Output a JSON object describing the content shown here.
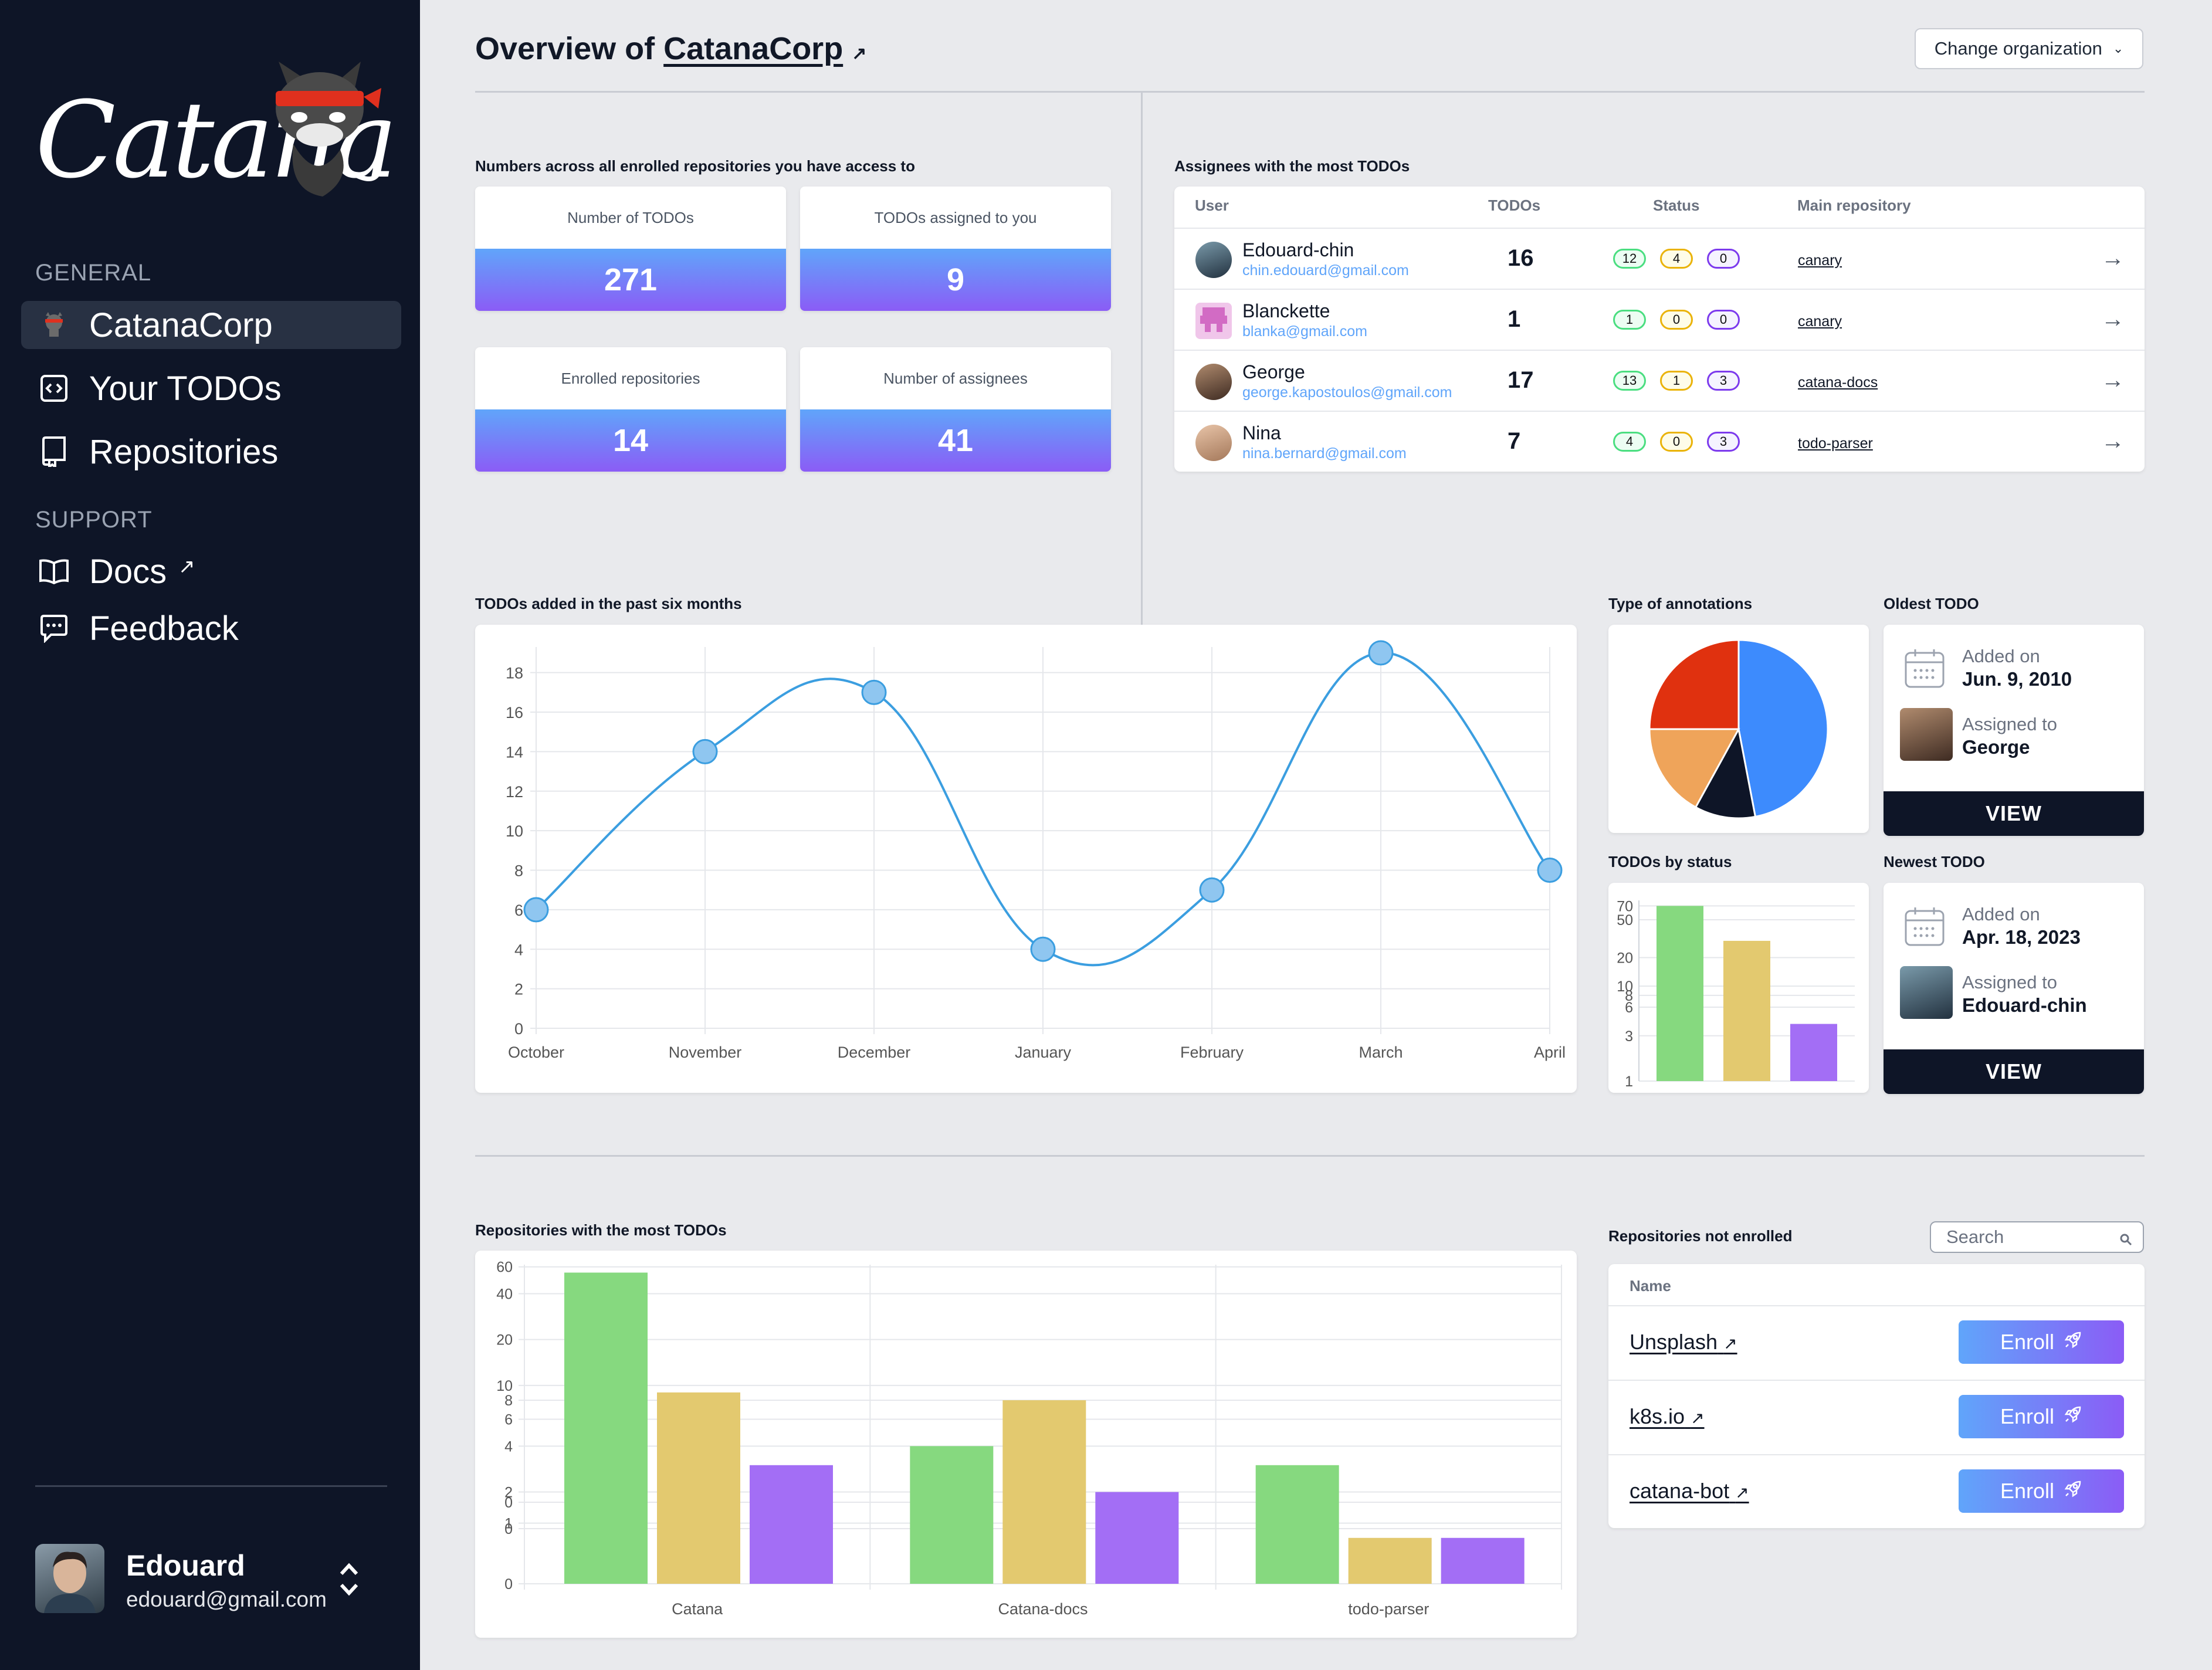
{
  "sidebar": {
    "logo_text": "Catana",
    "general_label": "GENERAL",
    "support_label": "SUPPORT",
    "items": [
      {
        "label": "CatanaCorp",
        "icon": "ninja-cat-icon"
      },
      {
        "label": "Your TODOs",
        "icon": "code-box-icon"
      },
      {
        "label": "Repositories",
        "icon": "repo-icon"
      },
      {
        "label": "Docs",
        "icon": "book-icon"
      },
      {
        "label": "Feedback",
        "icon": "chat-bubble-icon"
      }
    ],
    "user": {
      "name": "Edouard",
      "email": "edouard@gmail.com"
    }
  },
  "header": {
    "title_prefix": "Overview of",
    "org_name": "CatanaCorp",
    "change_org_label": "Change organization"
  },
  "numbers": {
    "title": "Numbers across all enrolled repositories you have access to",
    "cards": [
      {
        "label": "Number of TODOs",
        "value": "271"
      },
      {
        "label": "TODOs assigned to you",
        "value": "9"
      },
      {
        "label": "Enrolled repositories",
        "value": "14"
      },
      {
        "label": "Number of assignees",
        "value": "41"
      }
    ]
  },
  "assignees": {
    "title": "Assignees with the most TODOs",
    "headers": {
      "user": "User",
      "todos": "TODOs",
      "status": "Status",
      "repo": "Main repository"
    },
    "rows": [
      {
        "name": "Edouard-chin",
        "email": "chin.edouard@gmail.com",
        "todos": "16",
        "status": [
          "12",
          "4",
          "0"
        ],
        "repo": "canary"
      },
      {
        "name": "Blanckette",
        "email": "blanka@gmail.com",
        "todos": "1",
        "status": [
          "1",
          "0",
          "0"
        ],
        "repo": "canary"
      },
      {
        "name": "George",
        "email": "george.kapostoulos@gmail.com",
        "todos": "17",
        "status": [
          "13",
          "1",
          "3"
        ],
        "repo": "catana-docs"
      },
      {
        "name": "Nina",
        "email": "nina.bernard@gmail.com",
        "todos": "7",
        "status": [
          "4",
          "0",
          "3"
        ],
        "repo": "todo-parser"
      }
    ]
  },
  "line_chart_title": "TODOs added in the past six months",
  "annotations_title": "Type of annotations",
  "status_title": "TODOs by status",
  "oldest": {
    "title": "Oldest TODO",
    "added_label": "Added on",
    "added_value": "Jun. 9, 2010",
    "assigned_label": "Assigned to",
    "assigned_value": "George",
    "view_label": "VIEW"
  },
  "newest": {
    "title": "Newest TODO",
    "added_label": "Added on",
    "added_value": "Apr. 18, 2023",
    "assigned_label": "Assigned to",
    "assigned_value": "Edouard-chin",
    "view_label": "VIEW"
  },
  "repos_chart_title": "Repositories with the most TODOs",
  "not_enrolled": {
    "title": "Repositories not enrolled",
    "search_placeholder": "Search",
    "name_header": "Name",
    "enroll_label": "Enroll",
    "rows": [
      "Unsplash",
      "k8s.io",
      "catana-bot"
    ]
  },
  "colors": {
    "green": "#86d97f",
    "yellow": "#e3c96f",
    "purple": "#a36ef5",
    "line": "#3b9ee0",
    "sidebar": "#0e1527"
  },
  "chart_data": [
    {
      "type": "line",
      "x": [
        "October",
        "November",
        "December",
        "January",
        "February",
        "March",
        "April"
      ],
      "series": [
        {
          "values": [
            6,
            14,
            17,
            4,
            7,
            19,
            8
          ]
        }
      ],
      "yticks": [
        "0",
        "2",
        "4",
        "6",
        "8",
        "10",
        "12",
        "14",
        "16",
        "18"
      ],
      "ylim": [
        0,
        19
      ],
      "grid": true
    },
    {
      "type": "pie",
      "slices": [
        {
          "value": 47,
          "color": "#3d8bfd"
        },
        {
          "value": 11,
          "color": "#0e1527"
        },
        {
          "value": 17,
          "color": "#efa45a"
        },
        {
          "value": 25,
          "color": "#e0310f"
        }
      ]
    },
    {
      "type": "bar",
      "categories": [
        "",
        "",
        ""
      ],
      "values": [
        70,
        30,
        4
      ],
      "colors": [
        "#86d97f",
        "#e3c96f",
        "#a36ef5"
      ],
      "yticks": [
        "1",
        "3",
        "6",
        "8",
        "10",
        "20",
        "50",
        "70"
      ],
      "scale": "log"
    },
    {
      "type": "bar",
      "categories": [
        "Catana",
        "Catana-docs",
        "todo-parser"
      ],
      "series": [
        {
          "values": [
            55,
            4,
            3
          ],
          "color": "#86d97f"
        },
        {
          "values": [
            9,
            8,
            1
          ],
          "color": "#e3c96f"
        },
        {
          "values": [
            3,
            2,
            1
          ],
          "color": "#a36ef5"
        }
      ],
      "yticks": [
        "0",
        "0",
        "0",
        "1",
        "2",
        "4",
        "6",
        "8",
        "10",
        "20",
        "40",
        "60"
      ],
      "scale": "log"
    }
  ]
}
